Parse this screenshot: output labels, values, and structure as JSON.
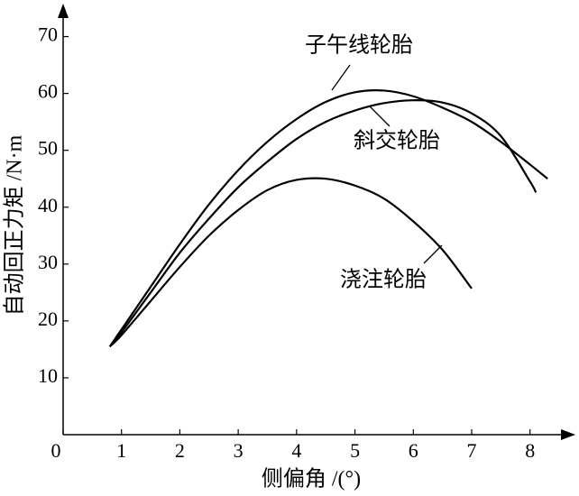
{
  "chart_data": {
    "type": "line",
    "x_label": "侧偏角 /(°)",
    "y_label": "自动回正力矩 /N·m",
    "xlim": [
      0,
      8.7
    ],
    "ylim": [
      0,
      75
    ],
    "xticks": [
      0,
      1,
      2,
      3,
      4,
      5,
      6,
      7,
      8
    ],
    "yticks": [
      10,
      20,
      30,
      40,
      50,
      60,
      70
    ],
    "series": [
      {
        "name": "子午线轮胎",
        "color": "#000000",
        "x": [
          0.8,
          1,
          1.5,
          2,
          2.5,
          3,
          3.5,
          4,
          4.5,
          5,
          5.5,
          6,
          6.5,
          7,
          7.5,
          8,
          8.3
        ],
        "values": [
          15.5,
          18.5,
          26,
          33.5,
          40.5,
          46.5,
          51.5,
          55.5,
          58.5,
          60.2,
          60.5,
          59.5,
          57.5,
          55,
          51.5,
          47.5,
          45
        ]
      },
      {
        "name": "斜交轮胎",
        "color": "#000000",
        "x": [
          0.8,
          1,
          1.5,
          2,
          2.5,
          3,
          3.5,
          4,
          4.5,
          5,
          5.5,
          6,
          6.5,
          7,
          7.5,
          8,
          8.1
        ],
        "values": [
          15.5,
          18,
          25,
          32,
          38,
          43.5,
          48,
          52,
          55,
          57,
          58.3,
          58.8,
          58.4,
          56.5,
          52.5,
          44.5,
          42.6
        ]
      },
      {
        "name": "浇注轮胎",
        "color": "#000000",
        "x": [
          0.8,
          1,
          1.5,
          2,
          2.5,
          3,
          3.5,
          4,
          4.5,
          5,
          5.5,
          6,
          6.5,
          7
        ],
        "values": [
          15.5,
          17.5,
          23.5,
          29.5,
          35,
          39.5,
          43,
          44.8,
          45,
          43.8,
          41.5,
          37.5,
          32.5,
          25.7
        ]
      }
    ]
  }
}
